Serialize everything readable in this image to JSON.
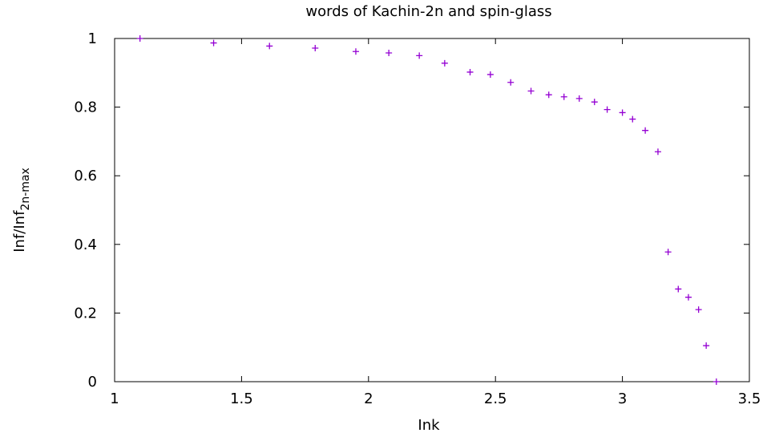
{
  "chart_data": {
    "type": "scatter",
    "title": "words of Kachin-2n and spin-glass",
    "xlabel": "Ink",
    "ylabel": {
      "main": "Inf/Inf",
      "sub": "2n-max"
    },
    "xlim": [
      1,
      3.5
    ],
    "ylim": [
      0,
      1
    ],
    "xticks": [
      "1",
      "1.5",
      "2",
      "2.5",
      "3",
      "3.5"
    ],
    "yticks": [
      "0",
      "0.2",
      "0.4",
      "0.6",
      "0.8",
      "1"
    ],
    "xtick_values": [
      1,
      1.5,
      2,
      2.5,
      3,
      3.5
    ],
    "ytick_values": [
      0,
      0.2,
      0.4,
      0.6,
      0.8,
      1
    ],
    "marker": "plus",
    "color": "#9400d3",
    "grid": false,
    "points": [
      [
        1.1,
        1.0
      ],
      [
        1.39,
        0.987
      ],
      [
        1.61,
        0.978
      ],
      [
        1.79,
        0.972
      ],
      [
        1.95,
        0.962
      ],
      [
        2.08,
        0.958
      ],
      [
        2.2,
        0.95
      ],
      [
        2.3,
        0.928
      ],
      [
        2.4,
        0.902
      ],
      [
        2.48,
        0.895
      ],
      [
        2.56,
        0.872
      ],
      [
        2.64,
        0.847
      ],
      [
        2.71,
        0.836
      ],
      [
        2.77,
        0.83
      ],
      [
        2.83,
        0.825
      ],
      [
        2.89,
        0.815
      ],
      [
        2.94,
        0.793
      ],
      [
        3.0,
        0.784
      ],
      [
        3.04,
        0.765
      ],
      [
        3.09,
        0.732
      ],
      [
        3.14,
        0.67
      ],
      [
        3.18,
        0.378
      ],
      [
        3.22,
        0.27
      ],
      [
        3.26,
        0.246
      ],
      [
        3.3,
        0.21
      ],
      [
        3.33,
        0.105
      ],
      [
        3.37,
        0.0
      ]
    ]
  }
}
